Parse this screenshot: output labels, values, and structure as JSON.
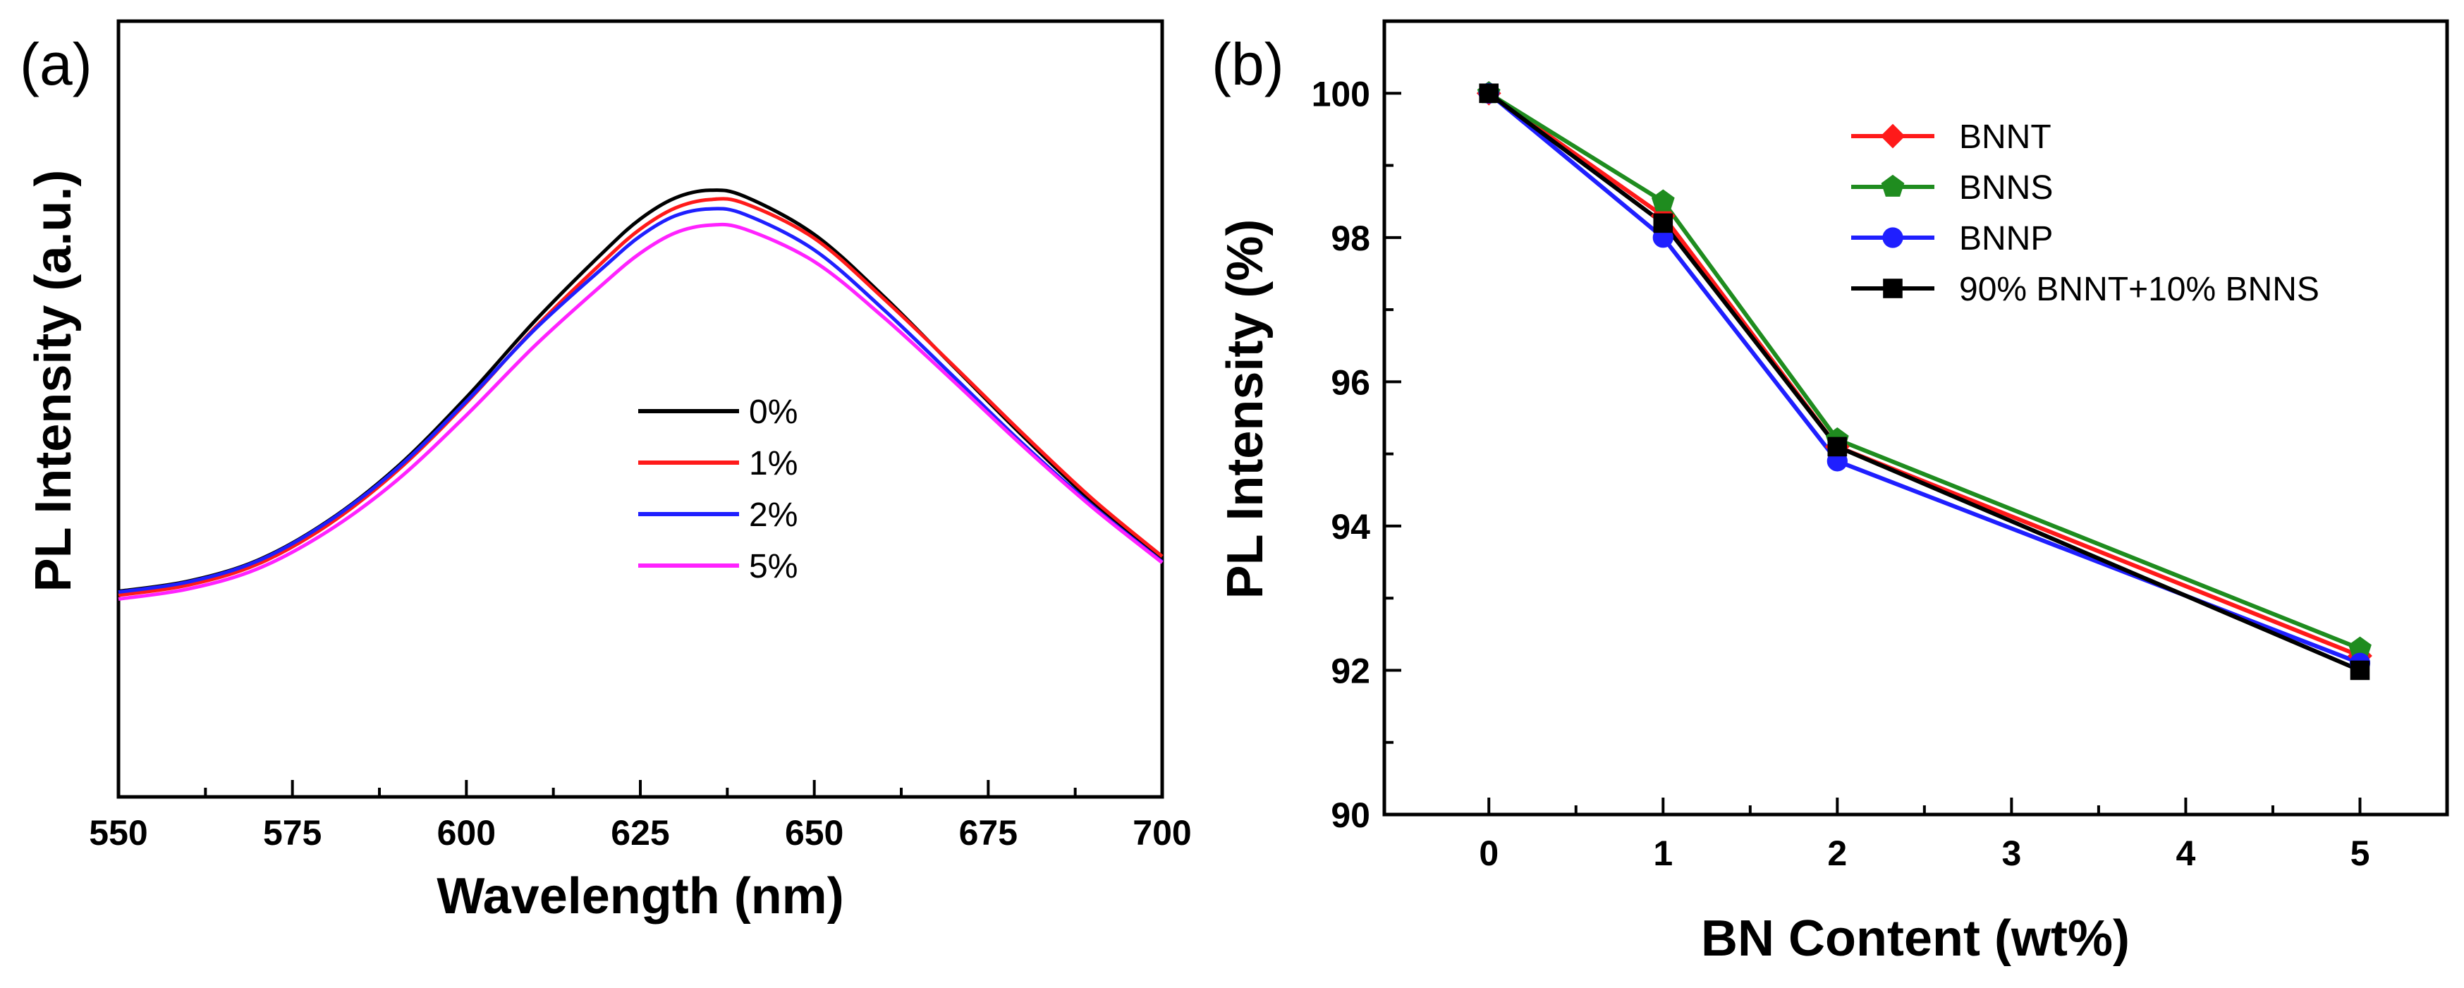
{
  "colors": {
    "black": "#000000",
    "red": "#ff1a1a",
    "green": "#1f8c1f",
    "blue": "#1f1fff",
    "magenta": "#ff22ff"
  },
  "chart_data": [
    {
      "panel_label": "(a)",
      "type": "line",
      "title": "",
      "xlabel": "Wavelength (nm)",
      "ylabel": "PL Intensity (a.u.)",
      "xlim": [
        550,
        700
      ],
      "ylim": [
        0,
        100
      ],
      "y_tick_labels_shown": false,
      "x_ticks": [
        550,
        575,
        600,
        625,
        650,
        675,
        700
      ],
      "x_tick_labels": [
        "550",
        "575",
        "600",
        "625",
        "650",
        "675",
        "700"
      ],
      "legend_position": "center",
      "series": [
        {
          "name": "0%",
          "color": "#000000",
          "x": [
            550,
            560,
            570,
            580,
            590,
            600,
            610,
            620,
            625,
            630,
            635,
            640,
            650,
            660,
            670,
            680,
            690,
            700
          ],
          "y": [
            26.5,
            27.8,
            30.5,
            35.5,
            42.5,
            51.5,
            61.5,
            70.5,
            74.5,
            77.2,
            78.2,
            77.4,
            72.5,
            64.5,
            55.5,
            46.5,
            38.0,
            30.5
          ]
        },
        {
          "name": "1%",
          "color": "#ff1a1a",
          "x": [
            550,
            560,
            570,
            580,
            590,
            600,
            610,
            620,
            625,
            630,
            635,
            640,
            650,
            660,
            670,
            680,
            690,
            700
          ],
          "y": [
            26.0,
            27.3,
            30.0,
            35.0,
            42.0,
            50.8,
            60.6,
            69.3,
            73.2,
            75.9,
            77.0,
            76.5,
            72.0,
            64.2,
            55.6,
            46.8,
            38.4,
            31.0
          ]
        },
        {
          "name": "2%",
          "color": "#1f1fff",
          "x": [
            550,
            560,
            570,
            580,
            590,
            600,
            610,
            620,
            625,
            630,
            635,
            640,
            650,
            660,
            670,
            680,
            690,
            700
          ],
          "y": [
            26.4,
            27.7,
            30.4,
            35.4,
            42.3,
            51.0,
            60.4,
            68.5,
            72.3,
            74.9,
            75.8,
            75.1,
            70.5,
            62.8,
            54.2,
            45.5,
            37.5,
            30.3
          ]
        },
        {
          "name": "5%",
          "color": "#ff22ff",
          "x": [
            550,
            560,
            570,
            580,
            590,
            600,
            610,
            620,
            625,
            630,
            635,
            640,
            650,
            660,
            670,
            680,
            690,
            700
          ],
          "y": [
            25.5,
            26.8,
            29.4,
            34.2,
            40.8,
            49.2,
            58.3,
            66.4,
            70.1,
            72.7,
            73.7,
            73.2,
            69.0,
            61.8,
            53.6,
            45.2,
            37.3,
            30.2
          ]
        }
      ]
    },
    {
      "panel_label": "(b)",
      "type": "line",
      "title": "",
      "xlabel": "BN Content (wt%)",
      "ylabel": "PL Intensity (%)",
      "xlim": [
        -0.6,
        5.5
      ],
      "ylim": [
        90,
        101
      ],
      "x_ticks": [
        0,
        1,
        2,
        3,
        4,
        5
      ],
      "x_tick_labels": [
        "0",
        "1",
        "2",
        "3",
        "4",
        "5"
      ],
      "y_ticks": [
        90,
        92,
        94,
        96,
        98,
        100
      ],
      "y_tick_labels": [
        "90",
        "92",
        "94",
        "96",
        "98",
        "100"
      ],
      "legend_position": "top-right",
      "series": [
        {
          "name": "BNNT",
          "color": "#ff1a1a",
          "marker": "diamond",
          "x": [
            0,
            1,
            2,
            5
          ],
          "y": [
            100,
            98.3,
            95.1,
            92.2
          ]
        },
        {
          "name": "BNNS",
          "color": "#1f8c1f",
          "marker": "pentagon",
          "x": [
            0,
            1,
            2,
            5
          ],
          "y": [
            100,
            98.5,
            95.2,
            92.3
          ]
        },
        {
          "name": "BNNP",
          "color": "#1f1fff",
          "marker": "circle",
          "x": [
            0,
            1,
            2,
            5
          ],
          "y": [
            100,
            98.0,
            94.9,
            92.1
          ]
        },
        {
          "name": "90% BNNT+10% BNNS",
          "color": "#000000",
          "marker": "square",
          "x": [
            0,
            1,
            2,
            5
          ],
          "y": [
            100,
            98.2,
            95.1,
            92.0
          ]
        }
      ]
    }
  ]
}
